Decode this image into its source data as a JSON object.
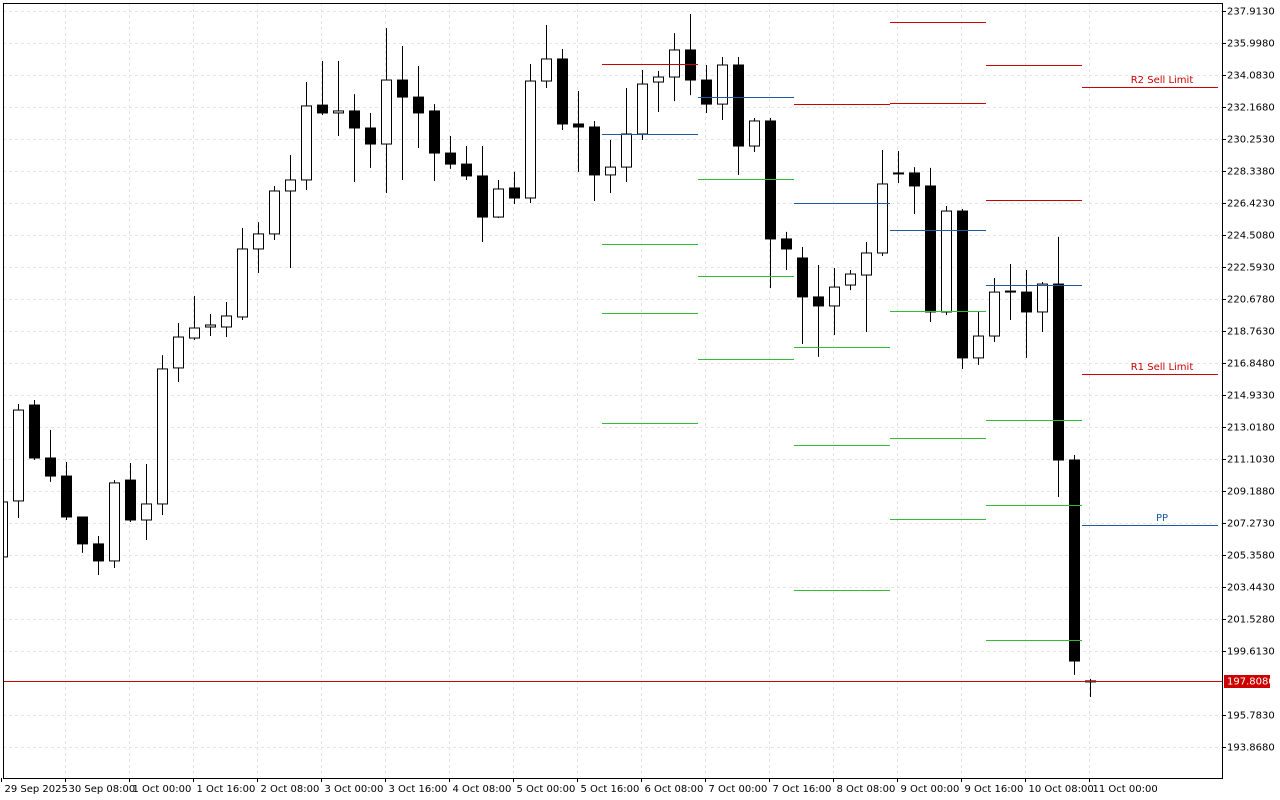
{
  "chart_data": {
    "type": "candlestick",
    "categories": [
      "29 Sep 2025",
      null,
      null,
      null,
      "30 Sep 08:00",
      null,
      null,
      null,
      "1 Oct 00:00",
      null,
      null,
      null,
      "1 Oct 16:00",
      null,
      null,
      null,
      "2 Oct 08:00",
      null,
      null,
      null,
      "3 Oct 00:00",
      null,
      null,
      null,
      "3 Oct 16:00",
      null,
      null,
      null,
      "4 Oct 08:00",
      null,
      null,
      null,
      "5 Oct 00:00",
      null,
      null,
      null,
      "5 Oct 16:00",
      null,
      null,
      null,
      "6 Oct 08:00",
      null,
      null,
      null,
      "7 Oct 00:00",
      null,
      null,
      null,
      "7 Oct 16:00",
      null,
      null,
      null,
      "8 Oct 08:00",
      null,
      null,
      null,
      "9 Oct 00:00",
      null,
      null,
      null,
      "9 Oct 16:00",
      null,
      null,
      null,
      "10 Oct 08:00",
      null,
      null,
      null,
      "11 Oct 00:00"
    ],
    "open": [
      205.24,
      208.59,
      214.33,
      211.16,
      210.08,
      207.63,
      206.02,
      205.0,
      209.84,
      207.45,
      208.41,
      216.55,
      218.34,
      219.0,
      219.0,
      219.6,
      223.67,
      224.57,
      227.14,
      227.8,
      232.28,
      231.81,
      231.93,
      230.91,
      229.95,
      233.78,
      232.76,
      231.93,
      229.41,
      228.75,
      228.04,
      225.58,
      227.32,
      226.72,
      233.72,
      235.04,
      231.15,
      230.97,
      228.1,
      228.57,
      230.55,
      233.66,
      233.96,
      235.58,
      233.78,
      232.34,
      234.68,
      229.83,
      231.33,
      224.27,
      223.13,
      220.8,
      220.26,
      221.51,
      222.11,
      223.43,
      228.22,
      228.22,
      227.44,
      219.9,
      225.94,
      217.15,
      218.46,
      221.09,
      221.09,
      219.9,
      221.57,
      211.04,
      197.82
    ],
    "high": [
      208.65,
      214.39,
      214.63,
      212.84,
      210.92,
      207.63,
      206.49,
      209.84,
      210.86,
      210.8,
      217.32,
      219.24,
      220.86,
      219.78,
      220.5,
      224.92,
      225.28,
      227.44,
      229.29,
      233.66,
      234.92,
      234.92,
      232.94,
      231.81,
      236.89,
      235.82,
      234.62,
      232.34,
      230.43,
      229.83,
      229.83,
      227.8,
      228.28,
      234.74,
      237.07,
      235.64,
      233.12,
      231.33,
      230.19,
      233.3,
      234.38,
      234.32,
      236.59,
      237.73,
      234.68,
      235.16,
      235.16,
      231.51,
      231.51,
      224.69,
      223.79,
      222.71,
      222.53,
      222.41,
      224.09,
      229.59,
      229.53,
      228.57,
      228.52,
      226.24,
      226.06,
      219.96,
      221.93,
      222.77,
      222.41,
      221.69,
      224.39,
      211.34,
      197.94
    ],
    "low": [
      205.1,
      207.57,
      211.04,
      209.73,
      207.45,
      205.48,
      204.16,
      204.58,
      207.33,
      206.25,
      207.75,
      215.71,
      218.22,
      218.46,
      218.4,
      219.42,
      222.23,
      224.21,
      222.53,
      227.2,
      231.69,
      230.43,
      227.68,
      228.52,
      227.02,
      227.8,
      229.71,
      227.74,
      228.46,
      227.8,
      224.09,
      225.52,
      226.36,
      226.42,
      233.3,
      230.79,
      228.28,
      226.54,
      227.02,
      227.68,
      230.19,
      231.87,
      232.52,
      232.88,
      231.81,
      231.39,
      228.1,
      229.47,
      221.33,
      222.41,
      217.98,
      217.21,
      218.52,
      221.21,
      218.7,
      223.25,
      227.62,
      225.76,
      219.3,
      219.72,
      216.49,
      216.73,
      218.1,
      219.42,
      217.15,
      218.7,
      208.83,
      198.18,
      196.86
    ],
    "close": [
      208.53,
      214.03,
      211.16,
      210.08,
      207.63,
      206.02,
      205.0,
      209.67,
      207.45,
      208.41,
      216.49,
      218.4,
      218.94,
      219.12,
      219.66,
      223.67,
      224.57,
      227.14,
      227.8,
      232.23,
      231.81,
      231.93,
      230.91,
      229.95,
      233.78,
      232.76,
      231.81,
      229.41,
      228.75,
      228.04,
      225.58,
      227.26,
      226.72,
      233.72,
      235.04,
      231.15,
      230.97,
      228.1,
      228.57,
      230.55,
      233.54,
      233.96,
      235.58,
      233.78,
      232.34,
      234.68,
      229.83,
      231.33,
      224.27,
      223.67,
      220.8,
      220.26,
      221.39,
      222.17,
      223.43,
      227.56,
      228.16,
      227.44,
      219.9,
      225.94,
      217.15,
      218.46,
      221.09,
      221.15,
      219.9,
      221.57,
      211.04,
      199.01,
      197.81
    ],
    "up_color": "#ffffff",
    "down_color": "#000000",
    "pivots": [
      {
        "resistance": [
          234.74
        ],
        "pivot": 230.55,
        "support": [
          223.97,
          219.84,
          213.26
        ]
      },
      {
        "resistance": [],
        "pivot": 232.76,
        "support": [
          227.86,
          222.05,
          217.09
        ]
      },
      {
        "resistance": [
          232.34
        ],
        "pivot": 226.42,
        "support": [
          217.8,
          211.94,
          203.26
        ]
      },
      {
        "resistance": [
          237.25,
          232.4
        ],
        "pivot": 224.81,
        "support": [
          219.96,
          212.36,
          207.51
        ]
      },
      {
        "resistance": [
          234.68,
          226.6
        ],
        "pivot": 221.51,
        "support": [
          213.43,
          208.35,
          200.27
        ]
      }
    ],
    "orders": [
      {
        "name": "R2 Sell Limit",
        "value": 233.36,
        "color": "#cc0000"
      },
      {
        "name": "R1 Sell Limit",
        "value": 216.19,
        "color": "#cc0000"
      },
      {
        "name": "PP",
        "value": 207.15,
        "color": "#1e5aa0"
      }
    ],
    "resistance_color": "#cc0000",
    "pivot_color": "#1e5aa0",
    "support_color": "#33bb33",
    "last_price": {
      "value": 197.808,
      "label": "197.8080"
    },
    "last_price_color": "#cc0000",
    "ylim": [
      192.01,
      238.39
    ],
    "yticks": [
      {
        "value": 237.913,
        "label": "237.9130"
      },
      {
        "value": 235.998,
        "label": "235.9980"
      },
      {
        "value": 234.083,
        "label": "234.0830"
      },
      {
        "value": 232.168,
        "label": "232.1680"
      },
      {
        "value": 230.253,
        "label": "230.2530"
      },
      {
        "value": 228.338,
        "label": "228.3380"
      },
      {
        "value": 226.423,
        "label": "226.4230"
      },
      {
        "value": 224.508,
        "label": "224.5080"
      },
      {
        "value": 222.593,
        "label": "222.5930"
      },
      {
        "value": 220.678,
        "label": "220.6780"
      },
      {
        "value": 218.763,
        "label": "218.7630"
      },
      {
        "value": 216.848,
        "label": "216.8480"
      },
      {
        "value": 214.933,
        "label": "214.9330"
      },
      {
        "value": 213.018,
        "label": "213.0180"
      },
      {
        "value": 211.103,
        "label": "211.1030"
      },
      {
        "value": 209.188,
        "label": "209.1880"
      },
      {
        "value": 207.273,
        "label": "207.2730"
      },
      {
        "value": 205.358,
        "label": "205.3580"
      },
      {
        "value": 203.443,
        "label": "203.4430"
      },
      {
        "value": 201.528,
        "label": "201.5280"
      },
      {
        "value": 199.613,
        "label": "199.6130"
      },
      {
        "value": 195.783,
        "label": "195.7830"
      },
      {
        "value": 193.868,
        "label": "193.8680"
      }
    ],
    "grid": true
  }
}
